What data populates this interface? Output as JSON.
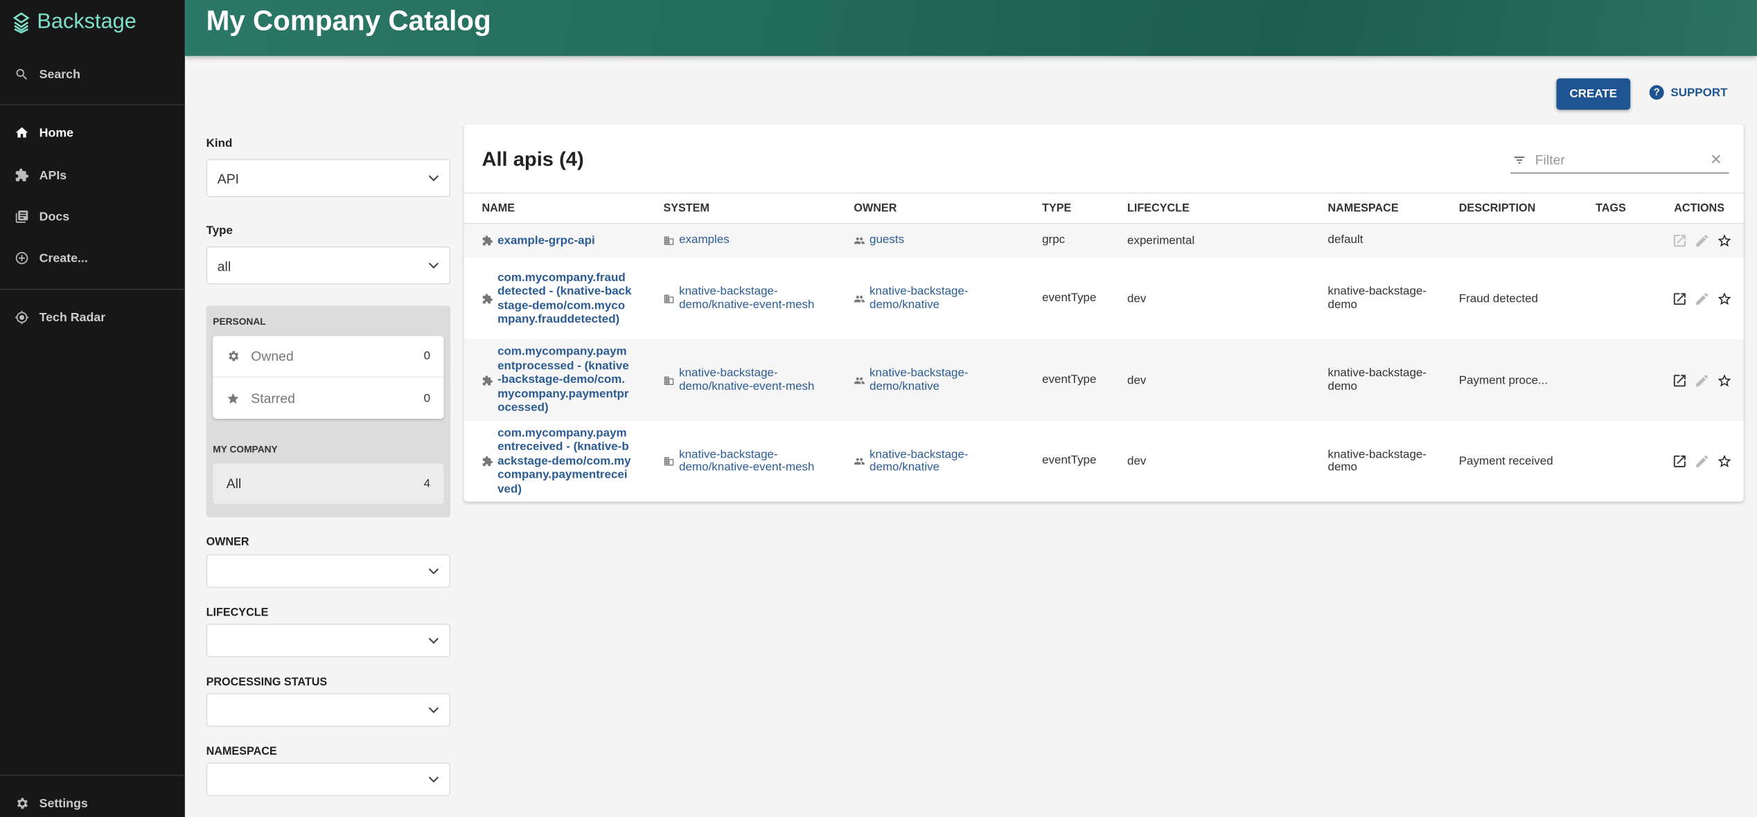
{
  "app": {
    "name": "Backstage"
  },
  "sidebar": {
    "search": "Search",
    "items": [
      {
        "label": "Home",
        "icon": "home-icon"
      },
      {
        "label": "APIs",
        "icon": "puzzle-icon"
      },
      {
        "label": "Docs",
        "icon": "docs-icon"
      },
      {
        "label": "Create...",
        "icon": "add-circle-icon"
      },
      {
        "label": "Tech Radar",
        "icon": "radar-icon"
      }
    ],
    "settings": "Settings"
  },
  "header": {
    "title": "My Company Catalog"
  },
  "actions": {
    "create": "CREATE",
    "support": "SUPPORT"
  },
  "filters": {
    "kind": {
      "label": "Kind",
      "value": "API"
    },
    "type": {
      "label": "Type",
      "value": "all"
    },
    "personal": {
      "title": "PERSONAL",
      "owned": {
        "label": "Owned",
        "count": "0"
      },
      "starred": {
        "label": "Starred",
        "count": "0"
      }
    },
    "company": {
      "title": "MY COMPANY",
      "all": {
        "label": "All",
        "count": "4"
      }
    },
    "owner": {
      "label": "OWNER",
      "value": ""
    },
    "lifecycle": {
      "label": "LIFECYCLE",
      "value": ""
    },
    "processing_status": {
      "label": "PROCESSING STATUS",
      "value": ""
    },
    "namespace": {
      "label": "NAMESPACE",
      "value": ""
    }
  },
  "table": {
    "title": "All apis (4)",
    "filter_placeholder": "Filter",
    "columns": [
      "NAME",
      "SYSTEM",
      "OWNER",
      "TYPE",
      "LIFECYCLE",
      "NAMESPACE",
      "DESCRIPTION",
      "TAGS",
      "ACTIONS"
    ],
    "rows": [
      {
        "name": "example-grpc-api",
        "system": "examples",
        "owner": "guests",
        "type": "grpc",
        "lifecycle": "experimental",
        "namespace": "default",
        "description": "",
        "tags": ""
      },
      {
        "name": "com.mycompany.frauddetected - (knative-backstage-demo/com.mycompany.frauddetected)",
        "system": "knative-backstage-demo/knative-event-mesh",
        "owner": "knative-backstage-demo/knative",
        "type": "eventType",
        "lifecycle": "dev",
        "namespace": "knative-backstage-demo",
        "description": "Fraud detected",
        "tags": ""
      },
      {
        "name": "com.mycompany.paymentprocessed - (knative-backstage-demo/com.mycompany.paymentprocessed)",
        "system": "knative-backstage-demo/knative-event-mesh",
        "owner": "knative-backstage-demo/knative",
        "type": "eventType",
        "lifecycle": "dev",
        "namespace": "knative-backstage-demo",
        "description": "Payment proce...",
        "tags": ""
      },
      {
        "name": "com.mycompany.paymentreceived - (knative-backstage-demo/com.mycompany.paymentreceived)",
        "system": "knative-backstage-demo/knative-event-mesh",
        "owner": "knative-backstage-demo/knative",
        "type": "eventType",
        "lifecycle": "dev",
        "namespace": "knative-backstage-demo",
        "description": "Payment received",
        "tags": ""
      }
    ]
  },
  "colors": {
    "sidebar": "#171717",
    "header": "#226a5a",
    "primary": "#1f5493",
    "link": "#2b5c94",
    "logo": "#7ee0c6"
  }
}
